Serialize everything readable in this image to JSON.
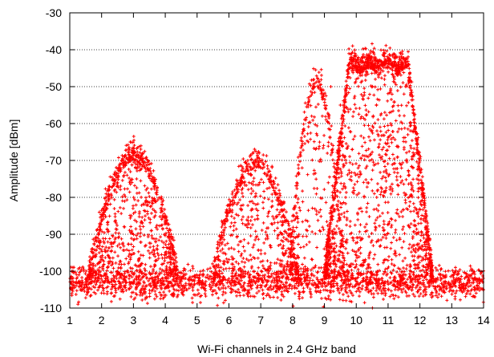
{
  "chart_data": {
    "type": "scatter",
    "title": "",
    "xlabel": "Wi-Fi channels in 2.4 GHz band",
    "ylabel": "Amplitude [dBm]",
    "xlim": [
      1,
      14
    ],
    "ylim": [
      -110,
      -30
    ],
    "xticks": [
      "1",
      "2",
      "3",
      "4",
      "5",
      "6",
      "7",
      "8",
      "9",
      "10",
      "11",
      "12",
      "13",
      "14"
    ],
    "yticks": [
      "-110",
      "-100",
      "-90",
      "-80",
      "-70",
      "-60",
      "-50",
      "-40",
      "-30"
    ],
    "grid": "horizontal-dotted",
    "legend": "none",
    "marker": "plus",
    "color": "#ff0000",
    "series": [
      {
        "points_description_only_for_rendering": false,
        "x": [
          1.2,
          1.5,
          1.8,
          2.1,
          2.4,
          2.7,
          3.0,
          3.3,
          3.6,
          3.9,
          4.2,
          4.5,
          4.8,
          5.1,
          5.4,
          5.7,
          6.0,
          6.3,
          6.6,
          6.9,
          7.2,
          7.5,
          7.8,
          8.1,
          8.4,
          8.7,
          9.0,
          9.3,
          9.6,
          9.9,
          10.2,
          10.5,
          10.8,
          11.1,
          11.4,
          11.7,
          12.0,
          12.3,
          12.6,
          12.9,
          13.2,
          13.5,
          13.8,
          1.9,
          2.2,
          2.5,
          2.8,
          3.1,
          3.4,
          3.7,
          4.0,
          5.8,
          6.1,
          6.4,
          6.7,
          7.0,
          7.3,
          7.6,
          7.9,
          8.3,
          8.6,
          8.9,
          9.2,
          9.5,
          9.4,
          9.7,
          10.0,
          10.3,
          10.6,
          10.9,
          11.2,
          11.5,
          11.8,
          12.1,
          2.9,
          6.9,
          8.8,
          10.4,
          10.9,
          10.6,
          11.1
        ],
        "y": [
          -104,
          -103,
          -102,
          -103,
          -104,
          -102,
          -103,
          -104,
          -103,
          -102,
          -104,
          -105,
          -104,
          -103,
          -104,
          -103,
          -102,
          -103,
          -104,
          -102,
          -103,
          -104,
          -103,
          -102,
          -100,
          -99,
          -103,
          -104,
          -103,
          -102,
          -104,
          -103,
          -102,
          -103,
          -104,
          -103,
          -102,
          -103,
          -104,
          -103,
          -102,
          -103,
          -104,
          -92,
          -82,
          -76,
          -74,
          -75,
          -78,
          -84,
          -95,
          -94,
          -84,
          -78,
          -74,
          -72,
          -76,
          -84,
          -94,
          -72,
          -58,
          -51,
          -50,
          -55,
          -70,
          -52,
          -48,
          -47,
          -48,
          -47,
          -48,
          -52,
          -62,
          -80,
          -65,
          -69,
          -48,
          -42,
          -41,
          -45,
          -44
        ]
      }
    ],
    "clusters": [
      {
        "x_min": 1.0,
        "x_max": 14.0,
        "y_min": -108,
        "y_max": -98,
        "count": 1800
      },
      {
        "x_min": 1.6,
        "x_max": 4.4,
        "peak_x": 3.0,
        "peak_y": -70,
        "floor_y": -102,
        "count": 900
      },
      {
        "x_min": 5.5,
        "x_max": 8.2,
        "peak_x": 6.9,
        "peak_y": -72,
        "floor_y": -102,
        "count": 650
      },
      {
        "x_min": 7.9,
        "x_max": 9.6,
        "peak_x": 8.9,
        "peak_y": -50,
        "floor_y": -100,
        "count": 350
      },
      {
        "x_min": 9.0,
        "x_max": 12.4,
        "peak_x": 10.6,
        "peak_y": -47,
        "floor_y": -102,
        "count": 1800
      }
    ]
  }
}
